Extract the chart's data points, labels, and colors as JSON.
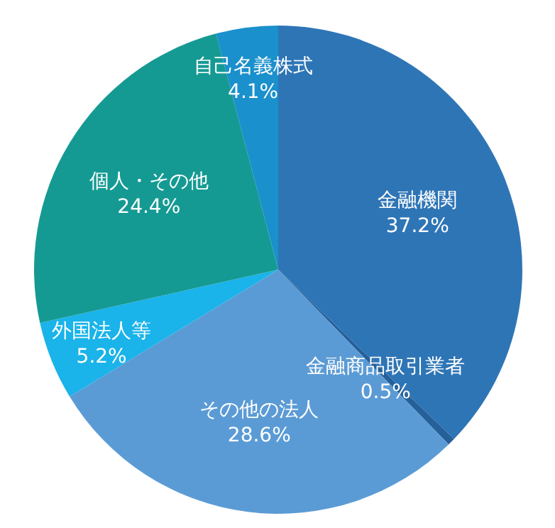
{
  "chart_data": {
    "type": "pie",
    "categories": [
      "金融機関",
      "金融商品取引業者",
      "その他の法人",
      "外国法人等",
      "個人・その他",
      "自己名義株式"
    ],
    "values": [
      37.2,
      0.5,
      28.6,
      5.2,
      24.4,
      4.1
    ],
    "value_labels": [
      "37.2%",
      "0.5%",
      "28.6%",
      "5.2%",
      "24.4%",
      "4.1%"
    ],
    "colors": [
      "#2e75b6",
      "#25609a",
      "#5b9bd5",
      "#1ab3ea",
      "#159a93",
      "#1a90cc"
    ]
  }
}
